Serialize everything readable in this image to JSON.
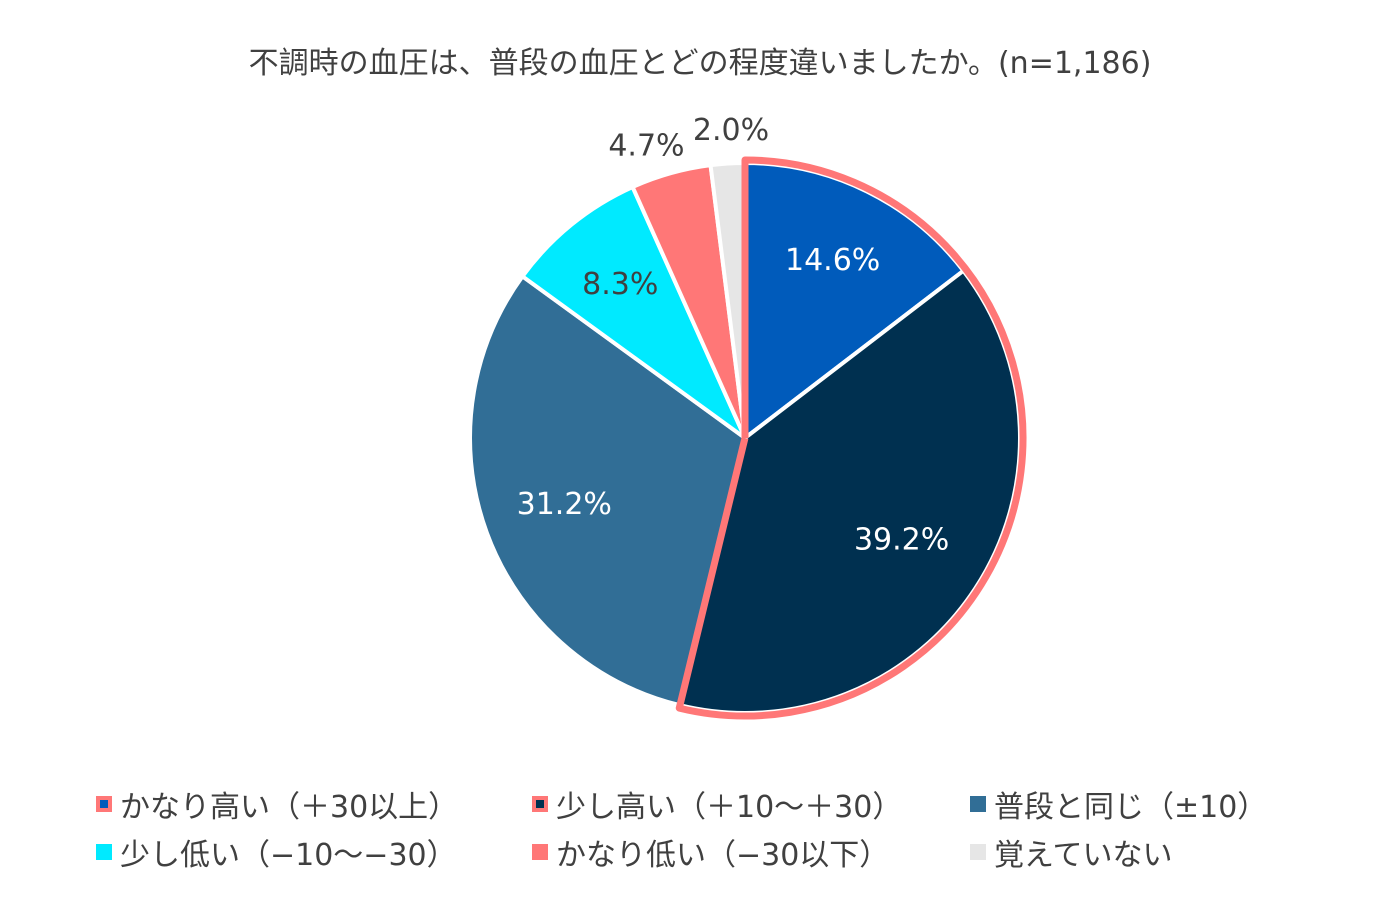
{
  "chart_data": {
    "type": "pie",
    "title": "不調時の血圧は、普段の血圧とどの程度違いましたか。(n=1,186)",
    "slices": [
      {
        "label": "かなり高い（＋30以上）",
        "value": 14.6,
        "value_label": "14.6%",
        "color": "#005BBB",
        "legend_border": "#FF7777",
        "label_color": "#ffffff"
      },
      {
        "label": "少し高い（＋10〜＋30）",
        "value": 39.2,
        "value_label": "39.2%",
        "color": "#003050",
        "legend_border": "#FF7777",
        "label_color": "#ffffff"
      },
      {
        "label": "普段と同じ（±10）",
        "value": 31.2,
        "value_label": "31.2%",
        "color": "#316E96",
        "legend_border": null,
        "label_color": "#ffffff"
      },
      {
        "label": "少し低い（−10〜−30）",
        "value": 8.3,
        "value_label": "8.3%",
        "color": "#00EAFF",
        "legend_border": null,
        "label_color": "#404040"
      },
      {
        "label": "かなり低い（−30以下）",
        "value": 4.7,
        "value_label": "4.7%",
        "color": "#FF7777",
        "legend_border": null,
        "label_color": "#404040"
      },
      {
        "label": "覚えていない",
        "value": 2.0,
        "value_label": "2.0%",
        "color": "#E6E6E6",
        "legend_border": null,
        "label_color": "#404040"
      }
    ],
    "highlight_color": "#FF7777",
    "legend_position": "bottom"
  }
}
